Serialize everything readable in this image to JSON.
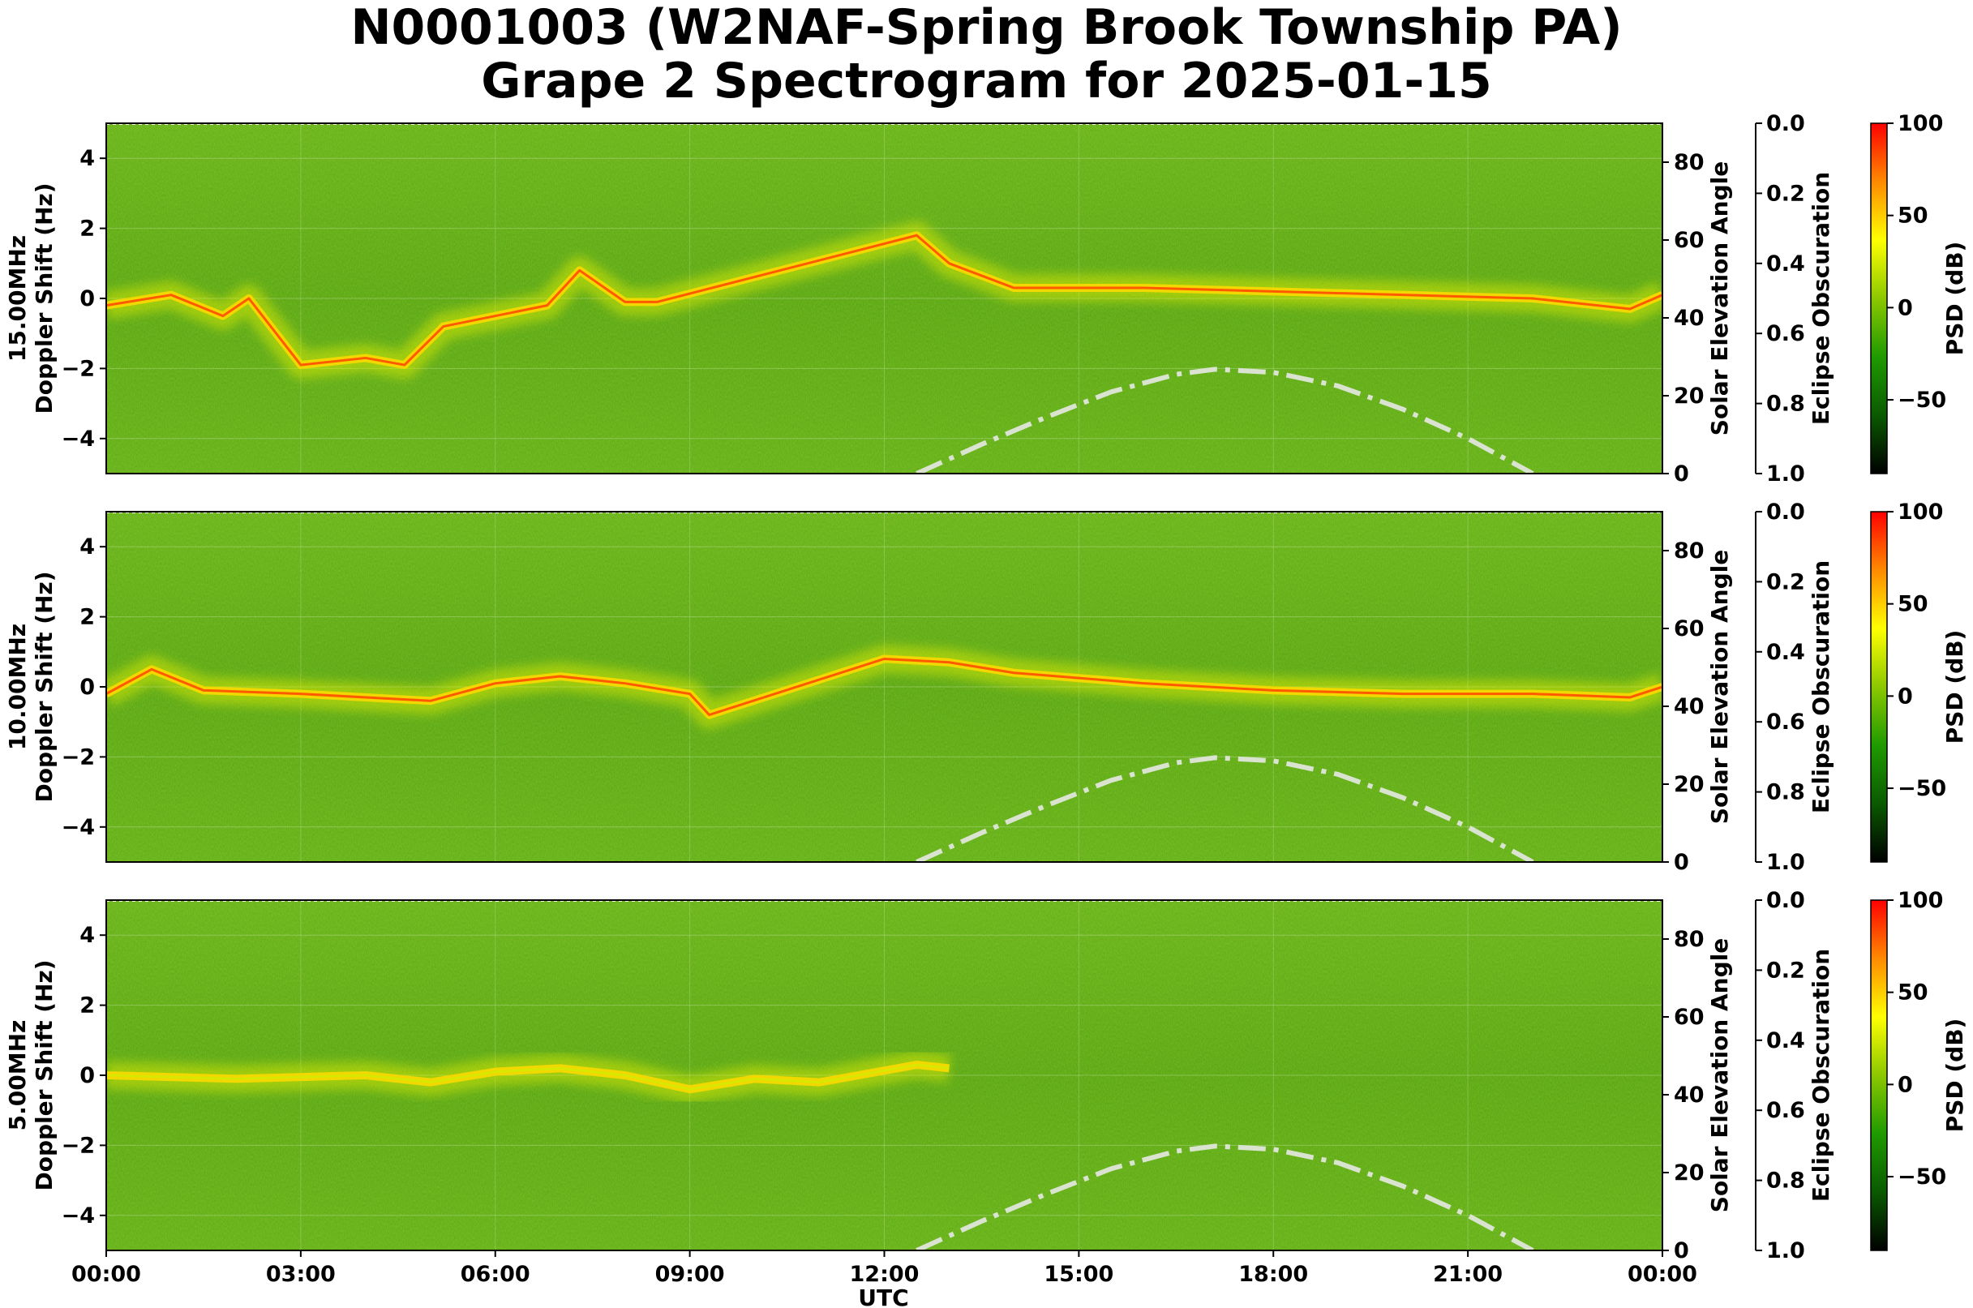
{
  "chart_data": {
    "type": "heatmap",
    "title": "N0001003 (W2NAF-Spring Brook Township PA)",
    "subtitle": "Grape 2 Spectrogram for 2025-01-15",
    "xlabel": "UTC",
    "x_ticks": [
      "00:00",
      "03:00",
      "06:00",
      "09:00",
      "12:00",
      "15:00",
      "18:00",
      "21:00",
      "00:00"
    ],
    "x_range_hours": [
      0,
      24
    ],
    "panels": [
      {
        "frequency_label": "15.00MHz",
        "ylabel": "Doppler Shift (Hz)",
        "ylim": [
          -5,
          5
        ],
        "y_ticks": [
          -4,
          -2,
          0,
          2,
          4
        ],
        "signal_trace": [
          [
            0,
            -0.2
          ],
          [
            1,
            0.1
          ],
          [
            1.8,
            -0.5
          ],
          [
            2.2,
            0.0
          ],
          [
            3,
            -1.9
          ],
          [
            4,
            -1.7
          ],
          [
            4.6,
            -1.9
          ],
          [
            5.2,
            -0.8
          ],
          [
            6.8,
            -0.2
          ],
          [
            7.3,
            0.8
          ],
          [
            8,
            -0.1
          ],
          [
            8.5,
            -0.1
          ],
          [
            12.5,
            1.8
          ],
          [
            13,
            1.0
          ],
          [
            14,
            0.3
          ],
          [
            16,
            0.3
          ],
          [
            18,
            0.2
          ],
          [
            20,
            0.1
          ],
          [
            22,
            0.0
          ],
          [
            23.5,
            -0.3
          ],
          [
            24,
            0.1
          ]
        ]
      },
      {
        "frequency_label": "10.00MHz",
        "ylabel": "Doppler Shift (Hz)",
        "ylim": [
          -5,
          5
        ],
        "y_ticks": [
          -4,
          -2,
          0,
          2,
          4
        ],
        "signal_trace": [
          [
            0,
            -0.2
          ],
          [
            0.7,
            0.5
          ],
          [
            1.5,
            -0.1
          ],
          [
            3,
            -0.2
          ],
          [
            5,
            -0.4
          ],
          [
            6,
            0.1
          ],
          [
            7,
            0.3
          ],
          [
            8,
            0.1
          ],
          [
            9,
            -0.2
          ],
          [
            9.3,
            -0.8
          ],
          [
            12,
            0.8
          ],
          [
            13,
            0.7
          ],
          [
            14,
            0.4
          ],
          [
            16,
            0.1
          ],
          [
            18,
            -0.1
          ],
          [
            20,
            -0.2
          ],
          [
            22,
            -0.2
          ],
          [
            23.5,
            -0.3
          ],
          [
            24,
            0.0
          ]
        ]
      },
      {
        "frequency_label": "5.00MHz",
        "ylabel": "Doppler Shift (Hz)",
        "ylim": [
          -5,
          5
        ],
        "y_ticks": [
          -4,
          -2,
          0,
          2,
          4
        ],
        "signal_trace": [
          [
            0,
            0.0
          ],
          [
            2,
            -0.1
          ],
          [
            4,
            0.0
          ],
          [
            5,
            -0.2
          ],
          [
            6,
            0.1
          ],
          [
            7,
            0.2
          ],
          [
            8,
            0.0
          ],
          [
            9,
            -0.4
          ],
          [
            10,
            -0.1
          ],
          [
            11,
            -0.2
          ],
          [
            12.5,
            0.3
          ],
          [
            13,
            0.2
          ]
        ]
      }
    ],
    "solar_elevation": {
      "ylabel": "Solar Elevation Angle",
      "ylim": [
        0,
        90
      ],
      "y_ticks": [
        0,
        20,
        40,
        60,
        80
      ],
      "style": "dash-dot",
      "color": "#d9e3d0",
      "points": [
        [
          12.5,
          0
        ],
        [
          13.5,
          7.5
        ],
        [
          14.5,
          14.5
        ],
        [
          15.5,
          21
        ],
        [
          16.5,
          25.5
        ],
        [
          17.1,
          26.8
        ],
        [
          18,
          26
        ],
        [
          19,
          22.5
        ],
        [
          20,
          16.5
        ],
        [
          21,
          9
        ],
        [
          22,
          0
        ]
      ]
    },
    "eclipse_obscuration": {
      "ylabel": "Eclipse Obscuration",
      "ylim": [
        1.0,
        0.0
      ],
      "y_ticks": [
        "0.0",
        "0.2",
        "0.4",
        "0.6",
        "0.8",
        "1.0"
      ]
    },
    "colorbar": {
      "label": "PSD (dB)",
      "range": [
        -90,
        100
      ],
      "ticks": [
        100,
        50,
        0,
        -50
      ],
      "colors": [
        "#000000",
        "#0a5a00",
        "#1f9a00",
        "#8cc800",
        "#ffff00",
        "#ff8a00",
        "#ff0000"
      ]
    }
  }
}
